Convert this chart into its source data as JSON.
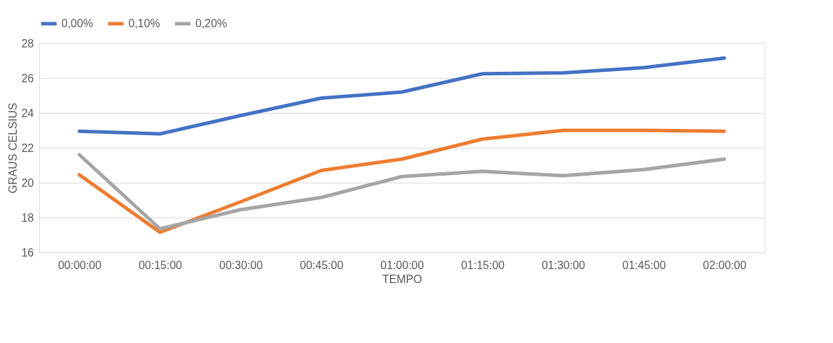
{
  "chart_data": {
    "type": "line",
    "xlabel": "TEMPO",
    "ylabel": "GRAUS CELSIUS",
    "categories": [
      "00:00:00",
      "00:15:00",
      "00:30:00",
      "00:45:00",
      "01:00:00",
      "01:15:00",
      "01:30:00",
      "01:45:00",
      "02:00:00"
    ],
    "series": [
      {
        "name": "0,00%",
        "color": "#4472c4",
        "values": [
          22.95,
          22.8,
          23.85,
          24.85,
          25.2,
          26.25,
          26.3,
          26.6,
          27.15
        ]
      },
      {
        "name": "0,10%",
        "color": "#ed7d31",
        "values": [
          20.45,
          17.15,
          18.9,
          20.7,
          21.35,
          22.5,
          23.0,
          23.0,
          22.95
        ]
      },
      {
        "name": "0,20%",
        "color": "#a5a5a5",
        "values": [
          21.6,
          17.35,
          18.45,
          19.15,
          20.35,
          20.65,
          20.4,
          20.75,
          21.35
        ]
      }
    ],
    "ylim": [
      16,
      28
    ],
    "yticks": [
      16,
      18,
      20,
      22,
      24,
      26,
      28
    ],
    "grid": "y",
    "legend": "top",
    "marker": "none",
    "line_style": "solid"
  }
}
